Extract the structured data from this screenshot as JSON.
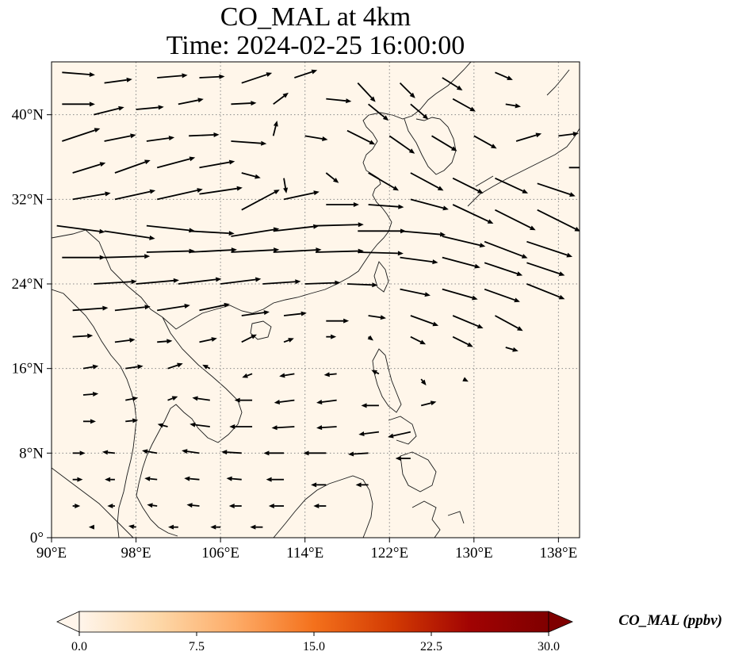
{
  "title": {
    "line1": "CO_MAL at 4km",
    "line2": "Time: 2024-02-25 16:00:00"
  },
  "map": {
    "extent": {
      "lon": [
        90,
        140
      ],
      "lat": [
        0,
        45
      ]
    },
    "background_color": "#fff6ea",
    "coastline_color": "#1a1a1a",
    "gridline_style": "dotted grey",
    "lon_ticks": [
      {
        "value": 90,
        "label": "90°E"
      },
      {
        "value": 98,
        "label": "98°E"
      },
      {
        "value": 106,
        "label": "106°E"
      },
      {
        "value": 114,
        "label": "114°E"
      },
      {
        "value": 122,
        "label": "122°E"
      },
      {
        "value": 130,
        "label": "130°E"
      },
      {
        "value": 138,
        "label": "138°E"
      }
    ],
    "lat_ticks": [
      {
        "value": 0,
        "label": "0°"
      },
      {
        "value": 8,
        "label": "8°N"
      },
      {
        "value": 16,
        "label": "16°N"
      },
      {
        "value": 24,
        "label": "24°N"
      },
      {
        "value": 32,
        "label": "32°N"
      },
      {
        "value": 40,
        "label": "40°N"
      }
    ],
    "wind_vectors": [
      {
        "lon": 91,
        "lat": 44,
        "u": 2.6,
        "v": -0.2
      },
      {
        "lon": 95,
        "lat": 43,
        "u": 2.2,
        "v": 0.3
      },
      {
        "lon": 100,
        "lat": 43.5,
        "u": 2.4,
        "v": 0.2
      },
      {
        "lon": 104,
        "lat": 43.5,
        "u": 2.0,
        "v": 0.1
      },
      {
        "lon": 108,
        "lat": 43,
        "u": 2.4,
        "v": 0.8
      },
      {
        "lon": 113,
        "lat": 43.5,
        "u": 1.8,
        "v": 0.6
      },
      {
        "lon": 119,
        "lat": 43,
        "u": 1.4,
        "v": -1.5
      },
      {
        "lon": 123,
        "lat": 43,
        "u": 1.2,
        "v": -1.2
      },
      {
        "lon": 127,
        "lat": 43.5,
        "u": 1.6,
        "v": -1.0
      },
      {
        "lon": 132,
        "lat": 44,
        "u": 1.4,
        "v": -0.6
      },
      {
        "lon": 91,
        "lat": 41,
        "u": 2.6,
        "v": 0.0
      },
      {
        "lon": 94,
        "lat": 40,
        "u": 2.4,
        "v": 0.6
      },
      {
        "lon": 98,
        "lat": 40.5,
        "u": 2.2,
        "v": 0.2
      },
      {
        "lon": 102,
        "lat": 41,
        "u": 2.0,
        "v": 0.4
      },
      {
        "lon": 107,
        "lat": 41,
        "u": 2.0,
        "v": 0.1
      },
      {
        "lon": 111,
        "lat": 41,
        "u": 1.2,
        "v": 0.9
      },
      {
        "lon": 116,
        "lat": 41.5,
        "u": 2.0,
        "v": -0.2
      },
      {
        "lon": 120,
        "lat": 41,
        "u": 1.6,
        "v": -1.3
      },
      {
        "lon": 124,
        "lat": 41,
        "u": 1.4,
        "v": -1.2
      },
      {
        "lon": 128,
        "lat": 41.5,
        "u": 1.8,
        "v": -1.0
      },
      {
        "lon": 133,
        "lat": 41,
        "u": 1.2,
        "v": -0.2
      },
      {
        "lon": 91,
        "lat": 37.5,
        "u": 3.0,
        "v": 1.0
      },
      {
        "lon": 95,
        "lat": 37.5,
        "u": 2.5,
        "v": 0.5
      },
      {
        "lon": 99,
        "lat": 37.5,
        "u": 2.2,
        "v": 0.3
      },
      {
        "lon": 103,
        "lat": 38,
        "u": 2.4,
        "v": 0.1
      },
      {
        "lon": 107,
        "lat": 37.5,
        "u": 2.8,
        "v": -0.2
      },
      {
        "lon": 111,
        "lat": 38,
        "u": 0.3,
        "v": 1.2
      },
      {
        "lon": 114,
        "lat": 38,
        "u": 1.8,
        "v": -0.3
      },
      {
        "lon": 118,
        "lat": 38.5,
        "u": 2.2,
        "v": -1.1
      },
      {
        "lon": 122,
        "lat": 38,
        "u": 2.0,
        "v": -1.4
      },
      {
        "lon": 126,
        "lat": 38,
        "u": 2.0,
        "v": -1.2
      },
      {
        "lon": 130,
        "lat": 38,
        "u": 1.8,
        "v": -1.0
      },
      {
        "lon": 134,
        "lat": 37.5,
        "u": 2.0,
        "v": 0.6
      },
      {
        "lon": 138,
        "lat": 38,
        "u": 1.6,
        "v": 0.2
      },
      {
        "lon": 92,
        "lat": 34.5,
        "u": 2.6,
        "v": 0.8
      },
      {
        "lon": 96,
        "lat": 34.5,
        "u": 2.8,
        "v": 1.0
      },
      {
        "lon": 100,
        "lat": 35,
        "u": 3.0,
        "v": 0.8
      },
      {
        "lon": 104,
        "lat": 35,
        "u": 2.8,
        "v": 0.5
      },
      {
        "lon": 108,
        "lat": 34.5,
        "u": 1.5,
        "v": -0.4
      },
      {
        "lon": 112,
        "lat": 34,
        "u": 0.2,
        "v": -1.2
      },
      {
        "lon": 116,
        "lat": 34.5,
        "u": 1.0,
        "v": -0.8
      },
      {
        "lon": 120,
        "lat": 34.5,
        "u": 2.4,
        "v": -1.4
      },
      {
        "lon": 124,
        "lat": 34.5,
        "u": 2.6,
        "v": -1.4
      },
      {
        "lon": 128,
        "lat": 34,
        "u": 2.4,
        "v": -1.2
      },
      {
        "lon": 132,
        "lat": 34,
        "u": 2.6,
        "v": -1.2
      },
      {
        "lon": 136,
        "lat": 33.5,
        "u": 3.0,
        "v": -1.0
      },
      {
        "lon": 139,
        "lat": 35,
        "u": 2.6,
        "v": 0.0
      },
      {
        "lon": 92,
        "lat": 32,
        "u": 3.0,
        "v": 0.5
      },
      {
        "lon": 96,
        "lat": 32,
        "u": 3.2,
        "v": 0.7
      },
      {
        "lon": 100,
        "lat": 32,
        "u": 3.6,
        "v": 0.8
      },
      {
        "lon": 104,
        "lat": 32.5,
        "u": 3.4,
        "v": 0.5
      },
      {
        "lon": 108,
        "lat": 31,
        "u": 3.0,
        "v": 1.6
      },
      {
        "lon": 112,
        "lat": 32,
        "u": 2.8,
        "v": 0.6
      },
      {
        "lon": 116,
        "lat": 31.5,
        "u": 2.6,
        "v": 0.0
      },
      {
        "lon": 120,
        "lat": 31.5,
        "u": 2.8,
        "v": -0.2
      },
      {
        "lon": 124,
        "lat": 32,
        "u": 3.0,
        "v": -0.8
      },
      {
        "lon": 128,
        "lat": 31.5,
        "u": 3.2,
        "v": -1.5
      },
      {
        "lon": 132,
        "lat": 31,
        "u": 3.2,
        "v": -1.6
      },
      {
        "lon": 136,
        "lat": 31,
        "u": 3.4,
        "v": -1.7
      },
      {
        "lon": 90.5,
        "lat": 29.5,
        "u": 3.8,
        "v": -0.5
      },
      {
        "lon": 95,
        "lat": 29,
        "u": 4.0,
        "v": -0.6
      },
      {
        "lon": 99,
        "lat": 29.5,
        "u": 3.8,
        "v": -0.4
      },
      {
        "lon": 103,
        "lat": 29,
        "u": 3.6,
        "v": -0.2
      },
      {
        "lon": 107,
        "lat": 28.5,
        "u": 3.8,
        "v": 0.6
      },
      {
        "lon": 111,
        "lat": 29,
        "u": 3.6,
        "v": 0.4
      },
      {
        "lon": 115,
        "lat": 29.5,
        "u": 3.8,
        "v": 0.1
      },
      {
        "lon": 119,
        "lat": 29,
        "u": 3.8,
        "v": 0.0
      },
      {
        "lon": 123,
        "lat": 29,
        "u": 3.6,
        "v": -0.3
      },
      {
        "lon": 127,
        "lat": 28.5,
        "u": 3.4,
        "v": -0.8
      },
      {
        "lon": 131,
        "lat": 28,
        "u": 3.4,
        "v": -1.3
      },
      {
        "lon": 135,
        "lat": 28,
        "u": 3.6,
        "v": -1.2
      },
      {
        "lon": 91,
        "lat": 26.5,
        "u": 3.4,
        "v": 0.0
      },
      {
        "lon": 95,
        "lat": 26.5,
        "u": 3.6,
        "v": 0.1
      },
      {
        "lon": 99,
        "lat": 27,
        "u": 3.8,
        "v": 0.1
      },
      {
        "lon": 103,
        "lat": 27,
        "u": 3.8,
        "v": 0.2
      },
      {
        "lon": 107,
        "lat": 27,
        "u": 3.8,
        "v": 0.2
      },
      {
        "lon": 111,
        "lat": 27,
        "u": 3.8,
        "v": 0.2
      },
      {
        "lon": 115,
        "lat": 27,
        "u": 3.8,
        "v": 0.1
      },
      {
        "lon": 119,
        "lat": 27,
        "u": 3.6,
        "v": -0.1
      },
      {
        "lon": 123,
        "lat": 26.5,
        "u": 3.0,
        "v": -0.4
      },
      {
        "lon": 127,
        "lat": 26.5,
        "u": 3.0,
        "v": -0.8
      },
      {
        "lon": 131,
        "lat": 26,
        "u": 3.0,
        "v": -1.0
      },
      {
        "lon": 135,
        "lat": 26,
        "u": 3.0,
        "v": -1.0
      },
      {
        "lon": 94,
        "lat": 24,
        "u": 3.4,
        "v": 0.2
      },
      {
        "lon": 98,
        "lat": 24,
        "u": 3.4,
        "v": 0.3
      },
      {
        "lon": 102,
        "lat": 24,
        "u": 3.4,
        "v": 0.4
      },
      {
        "lon": 106,
        "lat": 24,
        "u": 3.2,
        "v": 0.4
      },
      {
        "lon": 110,
        "lat": 24,
        "u": 3.0,
        "v": 0.2
      },
      {
        "lon": 114,
        "lat": 24,
        "u": 2.8,
        "v": 0.1
      },
      {
        "lon": 118,
        "lat": 24,
        "u": 2.4,
        "v": -0.1
      },
      {
        "lon": 123,
        "lat": 23.5,
        "u": 2.4,
        "v": -0.5
      },
      {
        "lon": 127,
        "lat": 23.5,
        "u": 2.8,
        "v": -0.8
      },
      {
        "lon": 131,
        "lat": 23.5,
        "u": 2.8,
        "v": -1.0
      },
      {
        "lon": 135,
        "lat": 24,
        "u": 3.0,
        "v": -1.2
      },
      {
        "lon": 92,
        "lat": 21.5,
        "u": 2.8,
        "v": 0.2
      },
      {
        "lon": 96,
        "lat": 21.5,
        "u": 2.8,
        "v": 0.3
      },
      {
        "lon": 100,
        "lat": 21.5,
        "u": 2.6,
        "v": 0.4
      },
      {
        "lon": 104,
        "lat": 21.5,
        "u": 2.4,
        "v": 0.5
      },
      {
        "lon": 108,
        "lat": 21,
        "u": 2.2,
        "v": 0.3
      },
      {
        "lon": 112,
        "lat": 21,
        "u": 1.8,
        "v": 0.2
      },
      {
        "lon": 116,
        "lat": 20.5,
        "u": 1.8,
        "v": 0.0
      },
      {
        "lon": 120,
        "lat": 21,
        "u": 1.4,
        "v": -0.2
      },
      {
        "lon": 124,
        "lat": 21,
        "u": 2.2,
        "v": -0.8
      },
      {
        "lon": 128,
        "lat": 21,
        "u": 2.4,
        "v": -1.0
      },
      {
        "lon": 132,
        "lat": 21,
        "u": 2.2,
        "v": -1.2
      },
      {
        "lon": 92,
        "lat": 19,
        "u": 1.6,
        "v": 0.1
      },
      {
        "lon": 96,
        "lat": 18.5,
        "u": 1.6,
        "v": 0.2
      },
      {
        "lon": 100,
        "lat": 18.5,
        "u": 1.2,
        "v": 0.1
      },
      {
        "lon": 104,
        "lat": 18.5,
        "u": 1.4,
        "v": 0.3
      },
      {
        "lon": 108,
        "lat": 18.5,
        "u": 1.2,
        "v": 0.6
      },
      {
        "lon": 112,
        "lat": 18.5,
        "u": 0.8,
        "v": 0.3
      },
      {
        "lon": 116,
        "lat": 19,
        "u": 0.8,
        "v": 0.0
      },
      {
        "lon": 120,
        "lat": 19,
        "u": 0.4,
        "v": -0.3
      },
      {
        "lon": 124,
        "lat": 19,
        "u": 1.2,
        "v": -0.6
      },
      {
        "lon": 128,
        "lat": 19,
        "u": 1.6,
        "v": -0.8
      },
      {
        "lon": 133,
        "lat": 18,
        "u": 1.0,
        "v": -0.3
      },
      {
        "lon": 93,
        "lat": 16,
        "u": 1.2,
        "v": 0.2
      },
      {
        "lon": 97,
        "lat": 16,
        "u": 1.4,
        "v": 0.2
      },
      {
        "lon": 101,
        "lat": 16,
        "u": 1.2,
        "v": 0.4
      },
      {
        "lon": 105,
        "lat": 16,
        "u": -0.6,
        "v": 0.3
      },
      {
        "lon": 109,
        "lat": 15.5,
        "u": -0.8,
        "v": -0.3
      },
      {
        "lon": 113,
        "lat": 15.5,
        "u": -1.2,
        "v": -0.2
      },
      {
        "lon": 117,
        "lat": 15.5,
        "u": -1.0,
        "v": -0.1
      },
      {
        "lon": 121,
        "lat": 15.5,
        "u": -0.6,
        "v": 0.3
      },
      {
        "lon": 125,
        "lat": 15,
        "u": 0.4,
        "v": -0.5
      },
      {
        "lon": 129,
        "lat": 15,
        "u": 0.4,
        "v": -0.2
      },
      {
        "lon": 93,
        "lat": 13.5,
        "u": 1.2,
        "v": 0.1
      },
      {
        "lon": 97,
        "lat": 13,
        "u": 1.0,
        "v": 0.2
      },
      {
        "lon": 101,
        "lat": 13,
        "u": 0.8,
        "v": 0.3
      },
      {
        "lon": 105,
        "lat": 13,
        "u": -1.4,
        "v": 0.2
      },
      {
        "lon": 109,
        "lat": 13,
        "u": -1.4,
        "v": 0.0
      },
      {
        "lon": 113,
        "lat": 13,
        "u": -1.6,
        "v": -0.2
      },
      {
        "lon": 117,
        "lat": 13,
        "u": -1.6,
        "v": -0.2
      },
      {
        "lon": 121,
        "lat": 12.5,
        "u": -1.4,
        "v": 0.0
      },
      {
        "lon": 125,
        "lat": 12.5,
        "u": 1.2,
        "v": 0.3
      },
      {
        "lon": 93,
        "lat": 11,
        "u": 1.0,
        "v": 0.0
      },
      {
        "lon": 97,
        "lat": 11,
        "u": 1.0,
        "v": 0.1
      },
      {
        "lon": 101,
        "lat": 10.5,
        "u": -0.8,
        "v": 0.2
      },
      {
        "lon": 105,
        "lat": 10.5,
        "u": -1.6,
        "v": 0.2
      },
      {
        "lon": 109,
        "lat": 10.5,
        "u": -1.8,
        "v": 0.0
      },
      {
        "lon": 113,
        "lat": 10.5,
        "u": -1.8,
        "v": -0.1
      },
      {
        "lon": 117,
        "lat": 10.5,
        "u": -1.6,
        "v": -0.1
      },
      {
        "lon": 121,
        "lat": 10,
        "u": -1.6,
        "v": -0.2
      },
      {
        "lon": 124,
        "lat": 10,
        "u": -1.8,
        "v": -0.4
      },
      {
        "lon": 92,
        "lat": 8,
        "u": 1.0,
        "v": 0.0
      },
      {
        "lon": 96,
        "lat": 8,
        "u": -1.0,
        "v": 0.1
      },
      {
        "lon": 100,
        "lat": 8,
        "u": -1.2,
        "v": 0.2
      },
      {
        "lon": 104,
        "lat": 8,
        "u": -1.4,
        "v": 0.2
      },
      {
        "lon": 108,
        "lat": 8,
        "u": -1.6,
        "v": 0.1
      },
      {
        "lon": 112,
        "lat": 8,
        "u": -1.6,
        "v": 0.0
      },
      {
        "lon": 116,
        "lat": 8,
        "u": -1.8,
        "v": 0.0
      },
      {
        "lon": 120,
        "lat": 8,
        "u": -1.6,
        "v": -0.1
      },
      {
        "lon": 124,
        "lat": 7.5,
        "u": -1.2,
        "v": 0.0
      },
      {
        "lon": 92,
        "lat": 5.5,
        "u": 0.8,
        "v": 0.0
      },
      {
        "lon": 96,
        "lat": 5.5,
        "u": -0.8,
        "v": 0.0
      },
      {
        "lon": 100,
        "lat": 5.5,
        "u": -1.0,
        "v": 0.1
      },
      {
        "lon": 104,
        "lat": 5.5,
        "u": -1.2,
        "v": 0.1
      },
      {
        "lon": 108,
        "lat": 5.5,
        "u": -1.2,
        "v": 0.1
      },
      {
        "lon": 112,
        "lat": 5.5,
        "u": -1.4,
        "v": 0.0
      },
      {
        "lon": 116,
        "lat": 5,
        "u": -1.2,
        "v": 0.0
      },
      {
        "lon": 120,
        "lat": 5,
        "u": -1.0,
        "v": 0.0
      },
      {
        "lon": 92,
        "lat": 3,
        "u": 0.6,
        "v": 0.0
      },
      {
        "lon": 96,
        "lat": 3,
        "u": -0.6,
        "v": 0.0
      },
      {
        "lon": 100,
        "lat": 3,
        "u": -0.8,
        "v": 0.1
      },
      {
        "lon": 104,
        "lat": 3,
        "u": -1.0,
        "v": 0.1
      },
      {
        "lon": 108,
        "lat": 3,
        "u": -1.0,
        "v": 0.0
      },
      {
        "lon": 112,
        "lat": 3,
        "u": -1.2,
        "v": 0.0
      },
      {
        "lon": 116,
        "lat": 3,
        "u": -1.0,
        "v": 0.0
      },
      {
        "lon": 94,
        "lat": 1,
        "u": -0.4,
        "v": 0.0
      },
      {
        "lon": 98,
        "lat": 1,
        "u": -0.6,
        "v": 0.1
      },
      {
        "lon": 102,
        "lat": 1,
        "u": -0.8,
        "v": 0.0
      },
      {
        "lon": 106,
        "lat": 1,
        "u": -0.8,
        "v": 0.0
      },
      {
        "lon": 110,
        "lat": 1,
        "u": -1.0,
        "v": 0.0
      }
    ]
  },
  "colorbar": {
    "label": "CO_MAL (ppbv)",
    "vmin": 0,
    "vmax": 30,
    "extend": "both",
    "colormap": [
      "#fff5eb",
      "#fdd8a9",
      "#fdab67",
      "#f4711c",
      "#d33b03",
      "#a10303",
      "#7f0000"
    ],
    "ticks": [
      {
        "value": 0,
        "label": "0.0"
      },
      {
        "value": 7.5,
        "label": "7.5"
      },
      {
        "value": 15,
        "label": "15.0"
      },
      {
        "value": 22.5,
        "label": "22.5"
      },
      {
        "value": 30,
        "label": "30.0"
      }
    ]
  }
}
